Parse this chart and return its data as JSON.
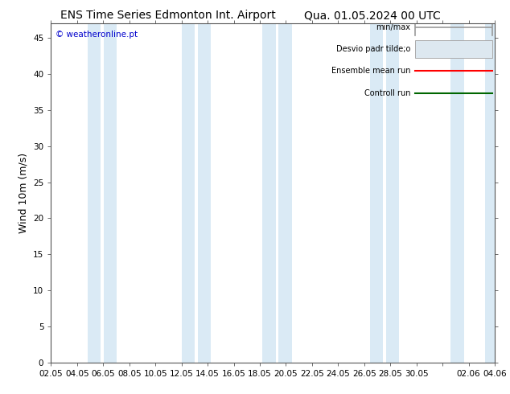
{
  "title_left": "ENS Time Series Edmonton Int. Airport",
  "title_right": "Qua. 01.05.2024 00 UTC",
  "ylabel": "Wind 10m (m/s)",
  "copyright": "© weatheronline.pt",
  "ylim": [
    0,
    47
  ],
  "yticks": [
    0,
    5,
    10,
    15,
    20,
    25,
    30,
    35,
    40,
    45
  ],
  "xtick_labels": [
    "02.05",
    "04.05",
    "06.05",
    "08.05",
    "10.05",
    "12.05",
    "14.05",
    "16.05",
    "18.05",
    "20.05",
    "22.05",
    "24.05",
    "26.05",
    "28.05",
    "30.05",
    "",
    "02.06",
    "04.06"
  ],
  "band_color": "#daeaf5",
  "bg_color": "#ffffff",
  "legend_items": [
    "min/max",
    "Desvio padr tilde;o",
    "Ensemble mean run",
    "Controll run"
  ],
  "legend_colors": [
    "#999999",
    "#cccccc",
    "#ff0000",
    "#006600"
  ],
  "title_fontsize": 10,
  "tick_fontsize": 7.5,
  "ylabel_fontsize": 9
}
